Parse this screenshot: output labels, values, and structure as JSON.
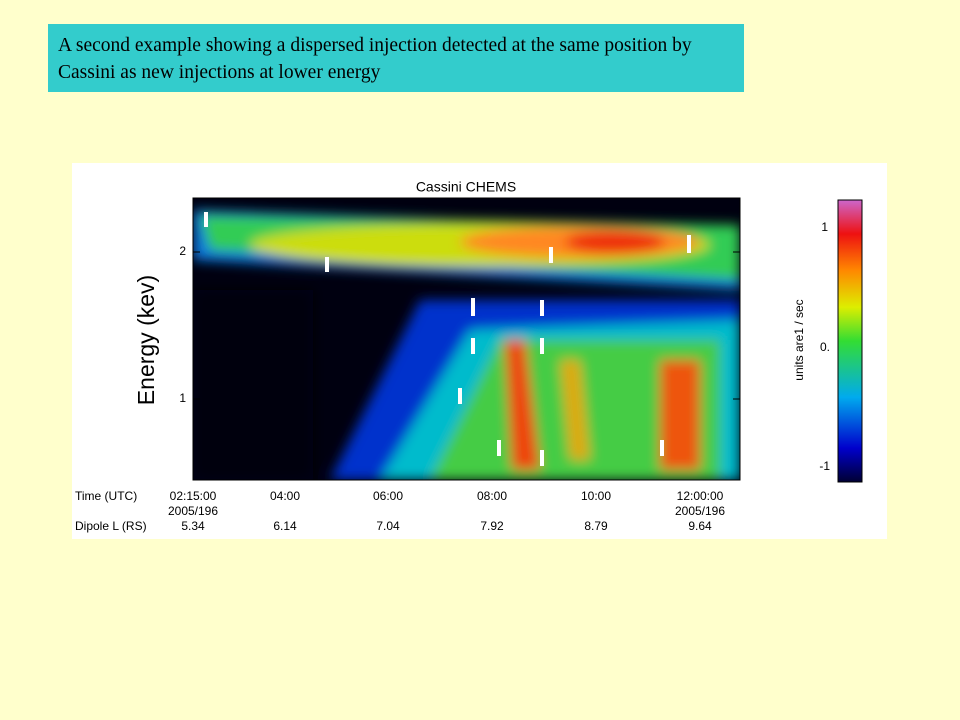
{
  "caption": "A second example showing a dispersed injection detected at the same position by Cassini as new injections at lower energy",
  "figure": {
    "title": "Cassini CHEMS",
    "y_label": "Energy (kev)",
    "y_ticks": [
      "2",
      "1"
    ],
    "colorbar_label": "units are1 / sec",
    "colorbar_ticks": [
      "1",
      "0.",
      "-1"
    ],
    "time_label": "Time (UTC)",
    "times": [
      "02:15:00",
      "04:00",
      "06:00",
      "08:00",
      "10:00",
      "12:00:00"
    ],
    "dates": [
      "2005/196",
      "2005/196"
    ],
    "dipole_label": "Dipole L (RS)",
    "dipole": [
      "5.34",
      "6.14",
      "7.04",
      "7.92",
      "8.79",
      "9.64"
    ]
  }
}
